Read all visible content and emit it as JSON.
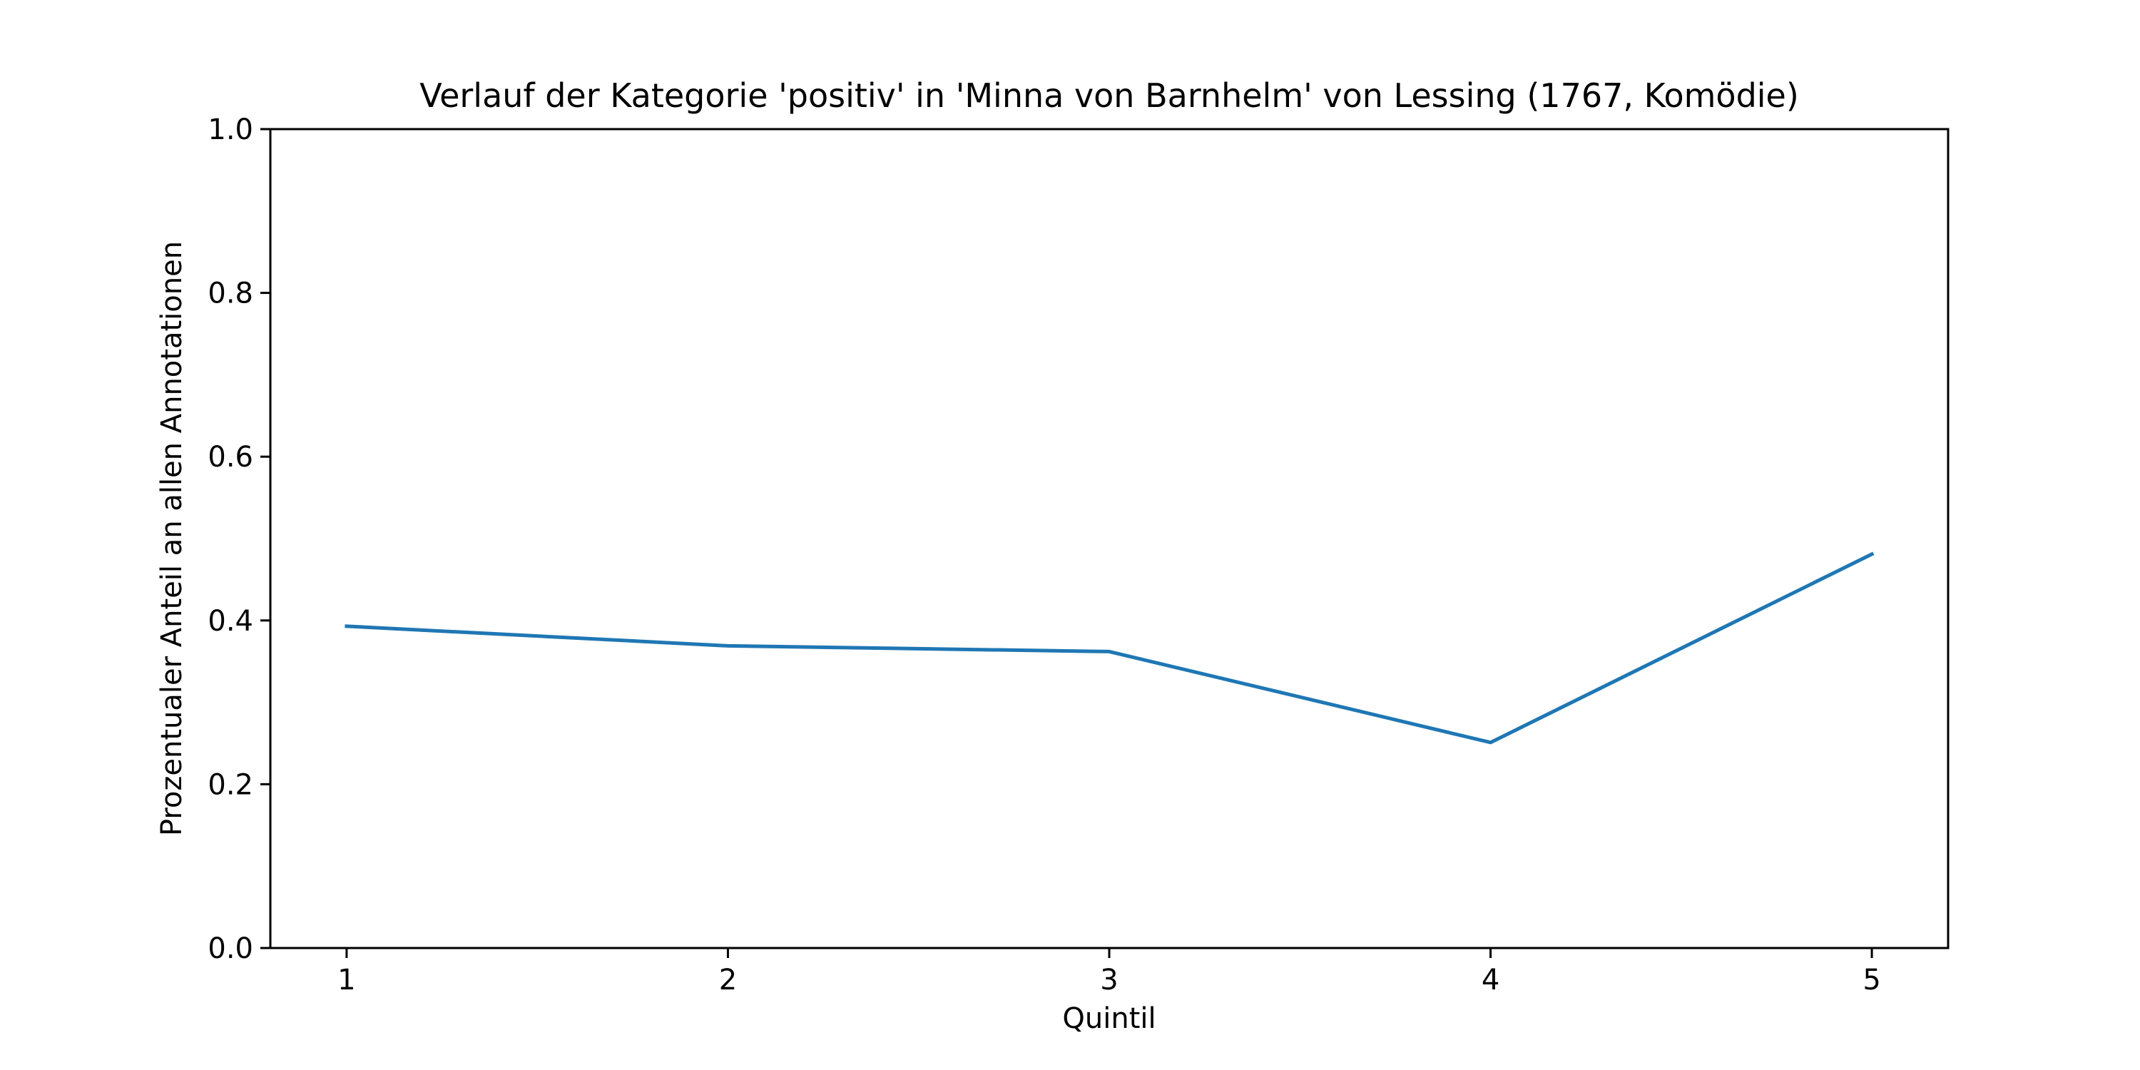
{
  "chart_data": {
    "type": "line",
    "title": "Verlauf der Kategorie 'positiv' in 'Minna von Barnhelm' von Lessing (1767, Komödie)",
    "xlabel": "Quintil",
    "ylabel": "Prozentualer Anteil an allen Annotationen",
    "x": [
      1,
      2,
      3,
      4,
      5
    ],
    "x_tick_labels": [
      "1",
      "2",
      "3",
      "4",
      "5"
    ],
    "xlim": [
      0.8,
      5.2
    ],
    "ylim": [
      0.0,
      1.0
    ],
    "y_ticks": [
      0.0,
      0.2,
      0.4,
      0.6,
      0.8,
      1.0
    ],
    "y_tick_labels": [
      "0.0",
      "0.2",
      "0.4",
      "0.6",
      "0.8",
      "1.0"
    ],
    "grid": false,
    "series": [
      {
        "values": [
          0.393,
          0.369,
          0.362,
          0.251,
          0.481
        ],
        "color": "#1f77b4"
      }
    ]
  }
}
